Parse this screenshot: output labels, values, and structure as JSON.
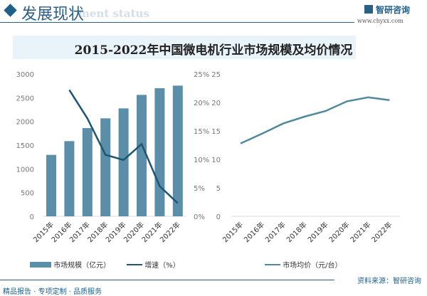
{
  "header": {
    "title": "发展现状",
    "subtitle": "ment status",
    "logo": "智研咨询",
    "url": "www.chyxx.com"
  },
  "title": "2015-2022年中国微电机行业市场规模及均价情况",
  "chart_data": [
    {
      "type": "bar+line",
      "categories": [
        "2015年",
        "2016年",
        "2017年",
        "2018年",
        "2019年",
        "2020年",
        "2021年",
        "2022年"
      ],
      "series": [
        {
          "name": "市场规模（亿元）",
          "type": "bar",
          "axis": "left",
          "color": "#5b8ea8",
          "values": [
            1295,
            1585,
            1860,
            2065,
            2275,
            2560,
            2700,
            2755
          ]
        },
        {
          "name": "增速（%）",
          "type": "line",
          "axis": "right",
          "color": "#1d5673",
          "values": [
            null,
            22.2,
            17.2,
            10.8,
            9.9,
            12.7,
            5.3,
            2.3
          ]
        }
      ],
      "yleft": {
        "range": [
          0,
          3000
        ],
        "ticks": [
          "0",
          "500",
          "1000",
          "1500",
          "2000",
          "2500",
          "3000"
        ]
      },
      "yright": {
        "range": [
          0,
          25
        ],
        "ticks": [
          "0%",
          "5%",
          "10%",
          "15%",
          "20%",
          "25%"
        ]
      },
      "grid": false,
      "legend": "bottom"
    },
    {
      "type": "line",
      "categories": [
        "2015年",
        "2016年",
        "2017年",
        "2018年",
        "2019年",
        "2020年",
        "2021年",
        "2022年"
      ],
      "series": [
        {
          "name": "市场均价（元/台）",
          "color": "#4f8a9c",
          "values": [
            12.8,
            14.5,
            16.3,
            17.5,
            18.5,
            20.2,
            20.9,
            20.4
          ]
        }
      ],
      "y": {
        "range": [
          0,
          25
        ],
        "ticks": [
          "0",
          "5",
          "10",
          "15",
          "20",
          "25"
        ]
      },
      "grid": false,
      "legend": "bottom"
    }
  ],
  "footer": {
    "slogan": "精品报告 · 专项定制 · 品质服务",
    "source": "资料来源：智研咨询"
  }
}
